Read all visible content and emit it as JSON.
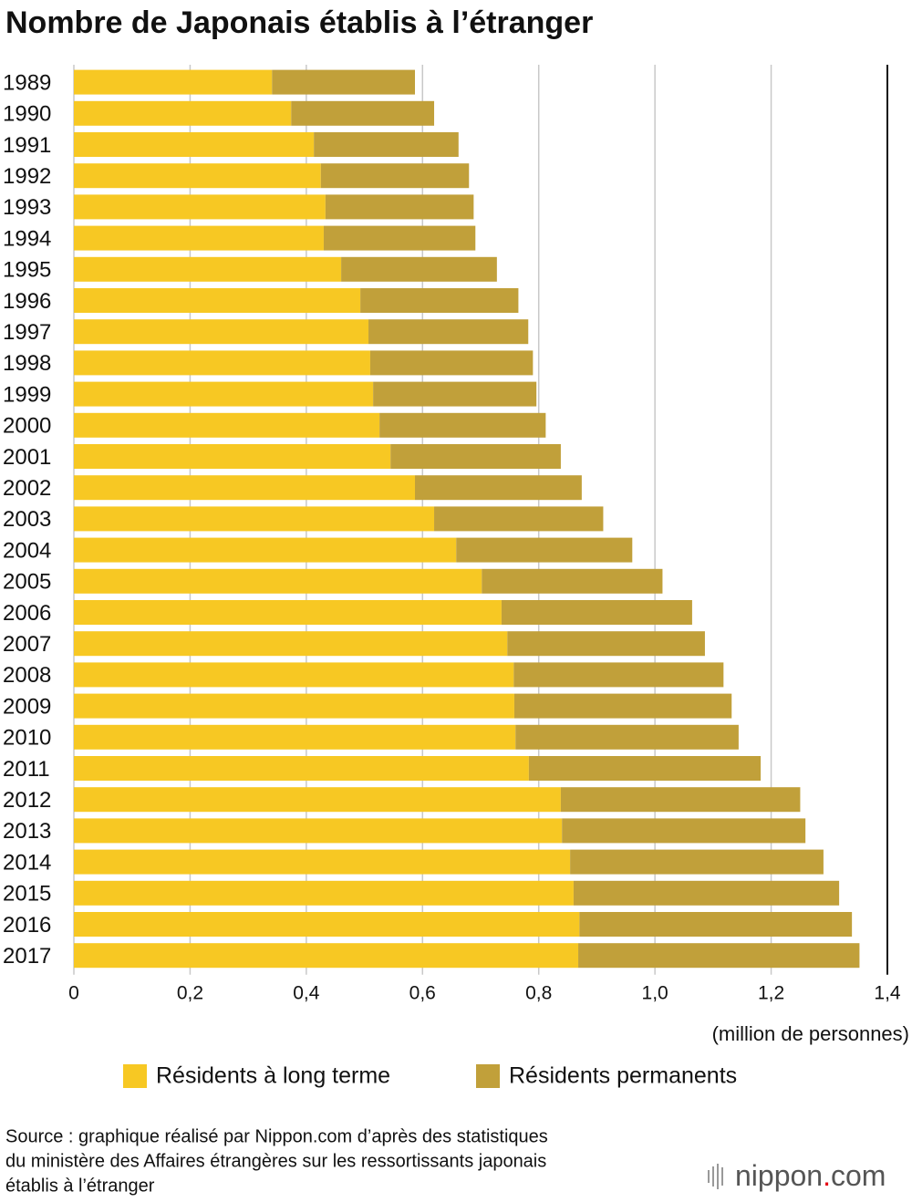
{
  "chart_data": {
    "type": "stacked-bar-horizontal",
    "title": "Nombre de Japonais établis à l’étranger",
    "x_label": "(million de personnes)",
    "categories": [
      "1989",
      "1990",
      "1991",
      "1992",
      "1993",
      "1994",
      "1995",
      "1996",
      "1997",
      "1998",
      "1999",
      "2000",
      "2001",
      "2002",
      "2003",
      "2004",
      "2005",
      "2006",
      "2007",
      "2008",
      "2009",
      "2010",
      "2011",
      "2012",
      "2013",
      "2014",
      "2015",
      "2016",
      "2017"
    ],
    "series": [
      {
        "name": "Résidents à long terme",
        "color": "#f7c823",
        "values": [
          0.341,
          0.374,
          0.413,
          0.425,
          0.433,
          0.43,
          0.46,
          0.493,
          0.507,
          0.51,
          0.515,
          0.526,
          0.545,
          0.587,
          0.62,
          0.658,
          0.702,
          0.736,
          0.746,
          0.757,
          0.758,
          0.76,
          0.783,
          0.838,
          0.84,
          0.854,
          0.86,
          0.87,
          0.868
        ]
      },
      {
        "name": "Résidents permanents",
        "color": "#c1a03a",
        "values": [
          0.246,
          0.246,
          0.249,
          0.255,
          0.255,
          0.261,
          0.268,
          0.272,
          0.275,
          0.28,
          0.281,
          0.286,
          0.293,
          0.287,
          0.291,
          0.303,
          0.311,
          0.328,
          0.34,
          0.361,
          0.374,
          0.384,
          0.399,
          0.412,
          0.419,
          0.436,
          0.457,
          0.469,
          0.484
        ]
      }
    ],
    "xlim": [
      0,
      1.4
    ],
    "xticks": [
      0,
      {
        "value": 0.2,
        "label": "0,2"
      },
      {
        "value": 0.4,
        "label": "0,4"
      },
      {
        "value": 0.6,
        "label": "0,6"
      },
      {
        "value": 0.8,
        "label": "0,8"
      },
      {
        "value": 1.0,
        "label": "1,0"
      },
      {
        "value": 1.2,
        "label": "1,2"
      },
      {
        "value": 1.4,
        "label": "1,4"
      }
    ],
    "grid": true,
    "legend": "bottom",
    "source": [
      "Source : graphique réalisé par Nippon.com d’après des statistiques",
      "du ministère des Affaires étrangères sur les ressortissants japonais",
      "établis à l’étranger"
    ],
    "logo": {
      "name": "nippon",
      "dot": ".",
      "suffix": "com"
    }
  }
}
